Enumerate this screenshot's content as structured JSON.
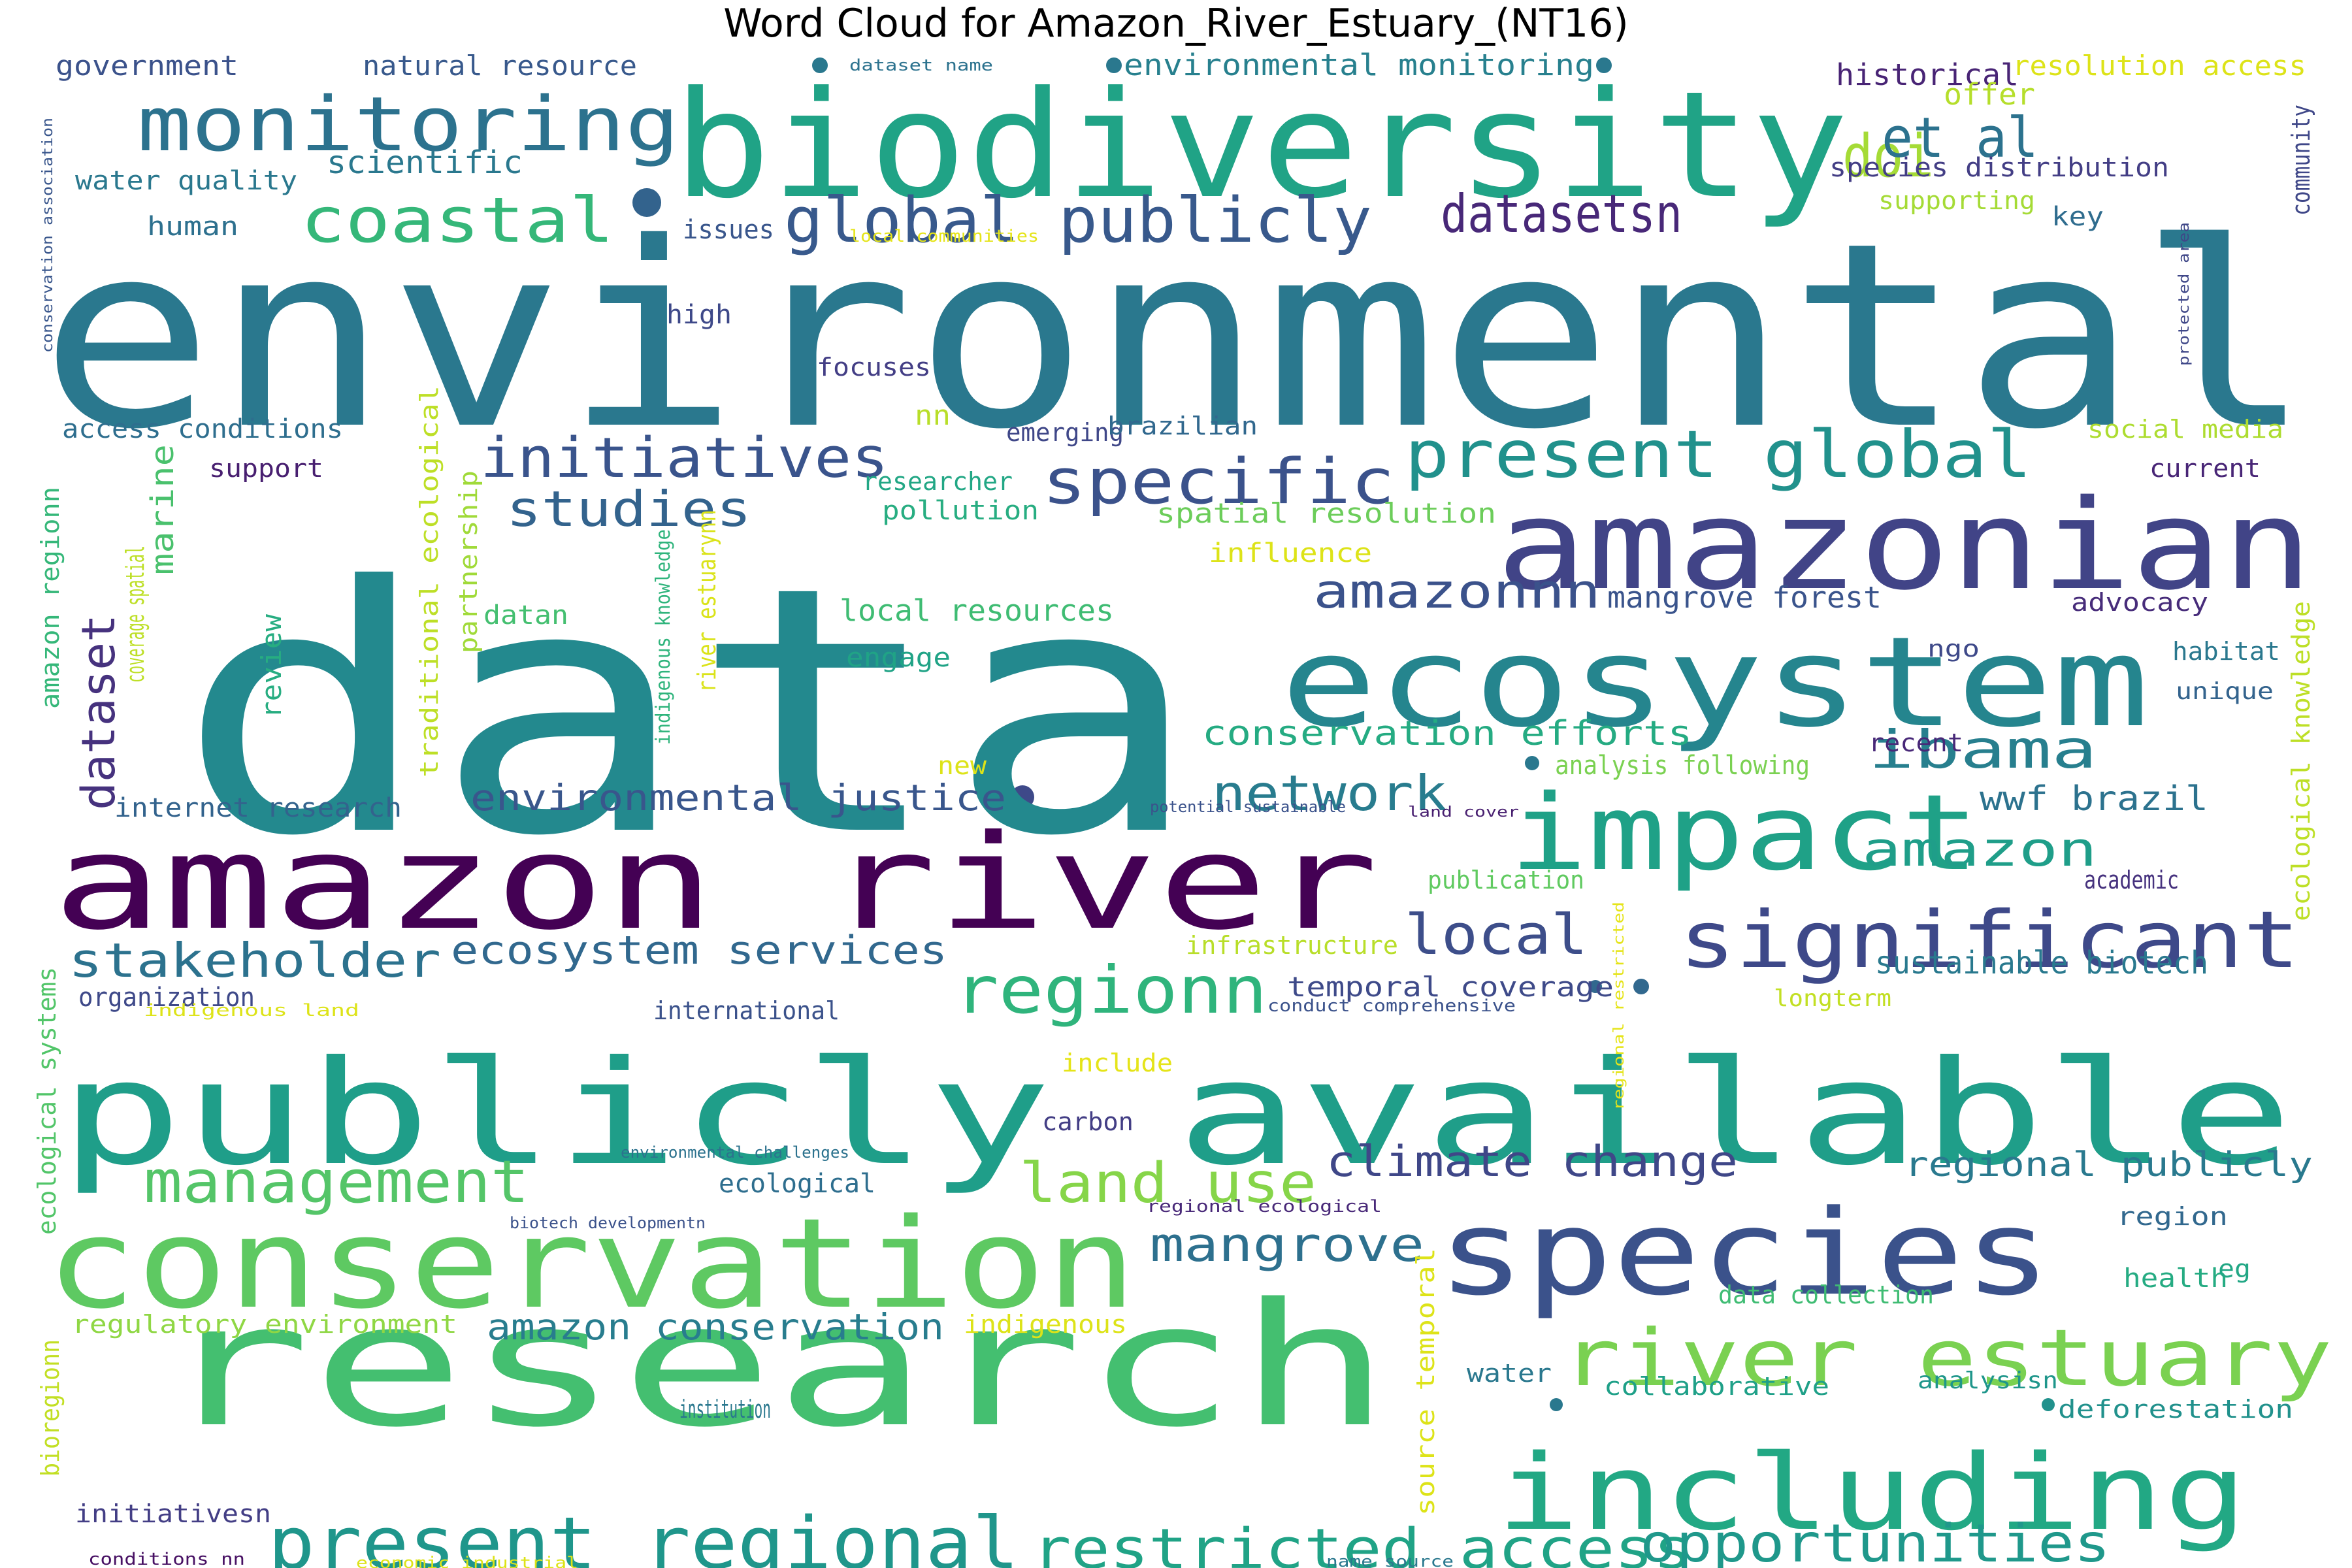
{
  "chart_data": {
    "type": "wordcloud",
    "title": "Word Cloud for Amazon_River_Estuary_(NT16)",
    "words": [
      {
        "text": "environmental",
        "weight": 100,
        "color": "#2a788e"
      },
      {
        "text": "data",
        "weight": 98,
        "color": "#23898e"
      },
      {
        "text": "biodiversity",
        "weight": 62,
        "color": "#20a386"
      },
      {
        "text": "publicly available",
        "weight": 60,
        "color": "#1f9e89"
      },
      {
        "text": "research",
        "weight": 58,
        "color": "#44bf70"
      },
      {
        "text": "amazon river",
        "weight": 50,
        "color": "#440154"
      },
      {
        "text": "conservation",
        "weight": 48,
        "color": "#5ec962"
      },
      {
        "text": "amazonian",
        "weight": 44,
        "color": "#414487"
      },
      {
        "text": "ecosystem",
        "weight": 42,
        "color": "#25858e"
      },
      {
        "text": "species",
        "weight": 42,
        "color": "#3b528b"
      },
      {
        "text": "including",
        "weight": 40,
        "color": "#22a884"
      },
      {
        "text": "impact",
        "weight": 38,
        "color": "#1fa187"
      },
      {
        "text": "significant",
        "weight": 28,
        "color": "#3e4989"
      },
      {
        "text": "river estuary",
        "weight": 28,
        "color": "#7ad151"
      },
      {
        "text": "monitoring",
        "weight": 27,
        "color": "#2c728e"
      },
      {
        "text": "present global",
        "weight": 22,
        "color": "#21918c"
      },
      {
        "text": "specific",
        "weight": 22,
        "color": "#3b528b"
      },
      {
        "text": "coastal",
        "weight": 22,
        "color": "#35b779"
      },
      {
        "text": "present regional",
        "weight": 22,
        "color": "#1f968b"
      },
      {
        "text": "regionn",
        "weight": 22,
        "color": "#2fb47c"
      },
      {
        "text": "restricted access",
        "weight": 20,
        "color": "#20a386"
      },
      {
        "text": "opportunities",
        "weight": 20,
        "color": "#1f988b"
      },
      {
        "text": "management",
        "weight": 20,
        "color": "#54c568"
      },
      {
        "text": "global publicly",
        "weight": 20,
        "color": "#38598c"
      },
      {
        "text": "doi",
        "weight": 20,
        "color": "#a5db36"
      },
      {
        "text": "initiatives",
        "weight": 18,
        "color": "#3a548c"
      },
      {
        "text": "et al",
        "weight": 18,
        "color": "#2c728e"
      },
      {
        "text": "land use",
        "weight": 18,
        "color": "#86d549"
      },
      {
        "text": "network",
        "weight": 17,
        "color": "#287c8e"
      },
      {
        "text": "ibama",
        "weight": 17,
        "color": "#277f8e"
      },
      {
        "text": "local",
        "weight": 17,
        "color": "#3d4e8a"
      },
      {
        "text": "datasetsn",
        "weight": 16,
        "color": "#482878"
      },
      {
        "text": "studies",
        "weight": 16,
        "color": "#33638d"
      },
      {
        "text": "amazonnn",
        "weight": 16,
        "color": "#3b528b"
      },
      {
        "text": "mangrove",
        "weight": 16,
        "color": "#2d708e"
      },
      {
        "text": "amazon",
        "weight": 15,
        "color": "#1f9e89"
      },
      {
        "text": "dataset",
        "weight": 15,
        "color": "#46327e"
      },
      {
        "text": "stakeholder",
        "weight": 15,
        "color": "#2c728e"
      },
      {
        "text": "climate change",
        "weight": 13,
        "color": "#3f4788"
      },
      {
        "text": "ecosystem services",
        "weight": 13,
        "color": "#31688e"
      },
      {
        "text": "amazon conservation",
        "weight": 11,
        "color": "#287d8e"
      },
      {
        "text": "environmental justice",
        "weight": 11,
        "color": "#39568c"
      },
      {
        "text": "conservation efforts",
        "weight": 11,
        "color": "#25ab82"
      },
      {
        "text": "regional publicly",
        "weight": 11,
        "color": "#29798e"
      },
      {
        "text": "wwf brazil",
        "weight": 11,
        "color": "#2c728e"
      },
      {
        "text": "sustainable biotech",
        "weight": 10,
        "color": "#29798e"
      },
      {
        "text": "temporal coverage",
        "weight": 9,
        "color": "#3e4a89"
      },
      {
        "text": "environmental monitoring",
        "weight": 9,
        "color": "#27808e"
      },
      {
        "text": "marine",
        "weight": 9,
        "color": "#4ac16d"
      },
      {
        "text": "spatial resolution",
        "weight": 9,
        "color": "#6ccd5a"
      },
      {
        "text": "mangrove forest",
        "weight": 9,
        "color": "#3a548c"
      },
      {
        "text": "local resources",
        "weight": 9,
        "color": "#3fbc73"
      },
      {
        "text": "historical",
        "weight": 9,
        "color": "#482475"
      },
      {
        "text": "resolution access",
        "weight": 9,
        "color": "#dde318"
      },
      {
        "text": "offer",
        "weight": 9,
        "color": "#b5de2b"
      },
      {
        "text": "scientific",
        "weight": 9,
        "color": "#2a788e"
      },
      {
        "text": "government",
        "weight": 8,
        "color": "#3b528b"
      },
      {
        "text": "natural resource",
        "weight": 8,
        "color": "#38598c"
      },
      {
        "text": "water quality",
        "weight": 8,
        "color": "#2a788e"
      },
      {
        "text": "human",
        "weight": 8,
        "color": "#2d708e"
      },
      {
        "text": "issues",
        "weight": 8,
        "color": "#39568c"
      },
      {
        "text": "high",
        "weight": 8,
        "color": "#3e4989"
      },
      {
        "text": "focuses",
        "weight": 8,
        "color": "#433e85"
      },
      {
        "text": "access conditions",
        "weight": 8,
        "color": "#2e6e8e"
      },
      {
        "text": "support",
        "weight": 8,
        "color": "#481f70"
      },
      {
        "text": "emerging",
        "weight": 8,
        "color": "#3f4788"
      },
      {
        "text": "brazilian",
        "weight": 8,
        "color": "#31688e"
      },
      {
        "text": "nn",
        "weight": 8,
        "color": "#b8de29"
      },
      {
        "text": "researcher",
        "weight": 8,
        "color": "#22a785"
      },
      {
        "text": "pollution",
        "weight": 8,
        "color": "#27ad81"
      },
      {
        "text": "influence",
        "weight": 8,
        "color": "#dde318"
      },
      {
        "text": "engage",
        "weight": 8,
        "color": "#20a386"
      },
      {
        "text": "datan",
        "weight": 8,
        "color": "#44bf70"
      },
      {
        "text": "review",
        "weight": 8,
        "color": "#27ad81"
      },
      {
        "text": "partnership",
        "weight": 8,
        "color": "#a0da39"
      },
      {
        "text": "amazon regionn",
        "weight": 8,
        "color": "#35b779"
      },
      {
        "text": "coverage spatial",
        "weight": 8,
        "color": "#bddf26"
      },
      {
        "text": "traditional ecological",
        "weight": 8,
        "color": "#bddf26"
      },
      {
        "text": "river estuarynn",
        "weight": 8,
        "color": "#dae319"
      },
      {
        "text": "internet research",
        "weight": 8,
        "color": "#33638d"
      },
      {
        "text": "species distribution",
        "weight": 8,
        "color": "#433e85"
      },
      {
        "text": "supporting",
        "weight": 8,
        "color": "#a5db36"
      },
      {
        "text": "key",
        "weight": 8,
        "color": "#2f6c8e"
      },
      {
        "text": "community",
        "weight": 8,
        "color": "#3f4788"
      },
      {
        "text": "social media",
        "weight": 8,
        "color": "#addc30"
      },
      {
        "text": "current",
        "weight": 8,
        "color": "#482576"
      },
      {
        "text": "advocacy",
        "weight": 8,
        "color": "#472c7a"
      },
      {
        "text": "habitat",
        "weight": 8,
        "color": "#2a788e"
      },
      {
        "text": "unique",
        "weight": 8,
        "color": "#33638d"
      },
      {
        "text": "ngo",
        "weight": 8,
        "color": "#3e4989"
      },
      {
        "text": "recent",
        "weight": 8,
        "color": "#482878"
      },
      {
        "text": "analysis following",
        "weight": 8,
        "color": "#7ad151"
      },
      {
        "text": "new",
        "weight": 8,
        "color": "#dde318"
      },
      {
        "text": "academic",
        "weight": 8,
        "color": "#46327e"
      },
      {
        "text": "publication",
        "weight": 8,
        "color": "#60ca60"
      },
      {
        "text": "infrastructure",
        "weight": 8,
        "color": "#b8de29"
      },
      {
        "text": "organization",
        "weight": 8,
        "color": "#3e4989"
      },
      {
        "text": "international",
        "weight": 8,
        "color": "#3b528b"
      },
      {
        "text": "longterm",
        "weight": 8,
        "color": "#c2df23"
      },
      {
        "text": "ecological knowledge",
        "weight": 8,
        "color": "#bddf26"
      },
      {
        "text": "include",
        "weight": 8,
        "color": "#e5e419"
      },
      {
        "text": "carbon",
        "weight": 8,
        "color": "#433e85"
      },
      {
        "text": "ecological",
        "weight": 8,
        "color": "#2e6e8e"
      },
      {
        "text": "region",
        "weight": 8,
        "color": "#31688e"
      },
      {
        "text": "health",
        "weight": 8,
        "color": "#25ab82"
      },
      {
        "text": "eg",
        "weight": 8,
        "color": "#22a785"
      },
      {
        "text": "data collection",
        "weight": 8,
        "color": "#3fbc73"
      },
      {
        "text": "regulatory environment",
        "weight": 8,
        "color": "#8fd744"
      },
      {
        "text": "indigenous",
        "weight": 8,
        "color": "#dde318"
      },
      {
        "text": "water",
        "weight": 8,
        "color": "#2a788e"
      },
      {
        "text": "collaborative",
        "weight": 8,
        "color": "#1fa088"
      },
      {
        "text": "analysisn",
        "weight": 8,
        "color": "#1f968b"
      },
      {
        "text": "institution",
        "weight": 8,
        "color": "#2a788e"
      },
      {
        "text": "deforestation",
        "weight": 8,
        "color": "#21918c"
      },
      {
        "text": "ecological systems",
        "weight": 8,
        "color": "#52c569"
      },
      {
        "text": "bioregionn",
        "weight": 8,
        "color": "#c2df23"
      },
      {
        "text": "initiativesn",
        "weight": 8,
        "color": "#433e85"
      },
      {
        "text": "source temporal",
        "weight": 8,
        "color": "#dde318"
      },
      {
        "text": "indigenous knowledge",
        "weight": 6,
        "color": "#2fb47c"
      },
      {
        "text": "conservation association",
        "weight": 5,
        "color": "#39568c"
      },
      {
        "text": "protected area",
        "weight": 5,
        "color": "#3f4788"
      },
      {
        "text": "dataset name",
        "weight": 5,
        "color": "#2c728e"
      },
      {
        "text": "local communities",
        "weight": 5,
        "color": "#e5e419"
      },
      {
        "text": "potential sustainable",
        "weight": 5,
        "color": "#3b528b"
      },
      {
        "text": "land cover",
        "weight": 5,
        "color": "#481f70"
      },
      {
        "text": "conduct comprehensive",
        "weight": 5,
        "color": "#3b528b"
      },
      {
        "text": "indigenous land",
        "weight": 5,
        "color": "#dde318"
      },
      {
        "text": "environmental challenges",
        "weight": 5,
        "color": "#2c728e"
      },
      {
        "text": "biotech developmentn",
        "weight": 5,
        "color": "#3b528b"
      },
      {
        "text": "regional ecological",
        "weight": 5,
        "color": "#482878"
      },
      {
        "text": "regional restricted",
        "weight": 5,
        "color": "#e5e419"
      },
      {
        "text": "conditions nn",
        "weight": 5,
        "color": "#471063"
      },
      {
        "text": "economic industrial",
        "weight": 5,
        "color": "#dde318"
      },
      {
        "text": "name source",
        "weight": 5,
        "color": "#2a788e"
      }
    ]
  }
}
